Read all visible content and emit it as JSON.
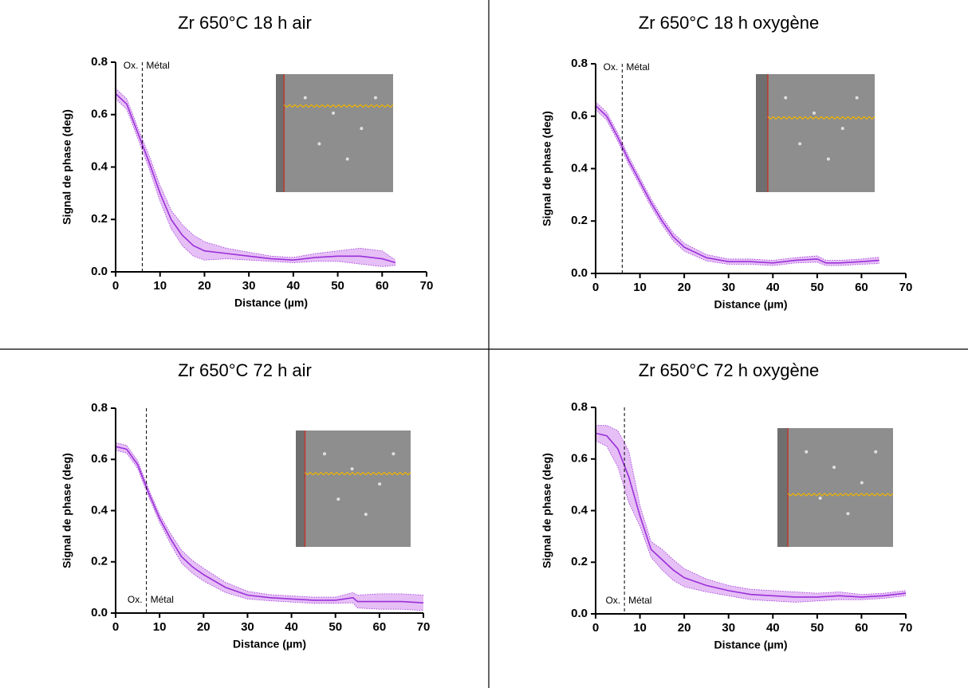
{
  "chart_data": [
    {
      "type": "line",
      "title": "Zr 650°C 18 h air",
      "xlabel": "Distance (µm)",
      "ylabel": "Signal de phase (deg)",
      "xlim": [
        0,
        70
      ],
      "xticks": [
        0,
        10,
        20,
        30,
        40,
        50,
        60,
        70
      ],
      "ylim": [
        0,
        0.8
      ],
      "yticks": [
        {
          "value": 0,
          "label": "0.0"
        },
        0.2,
        0.4,
        0.6,
        0.8
      ],
      "color": "#9b30d9",
      "band_color": "#dca4f2",
      "boundary": 6,
      "annotations": [
        "Ox.",
        "Métal"
      ],
      "annotation_position": "top",
      "x": [
        0,
        2.5,
        5,
        7.5,
        10,
        12.5,
        15,
        17.5,
        20,
        25,
        30,
        35,
        40,
        45,
        50,
        55,
        60,
        63
      ],
      "values": [
        0.68,
        0.64,
        0.53,
        0.42,
        0.3,
        0.2,
        0.14,
        0.1,
        0.08,
        0.07,
        0.06,
        0.05,
        0.045,
        0.055,
        0.06,
        0.06,
        0.05,
        0.035
      ],
      "errors": [
        0.02,
        0.02,
        0.02,
        0.025,
        0.03,
        0.035,
        0.04,
        0.04,
        0.035,
        0.02,
        0.015,
        0.01,
        0.01,
        0.015,
        0.02,
        0.03,
        0.03,
        0.01
      ]
    },
    {
      "type": "line",
      "title": "Zr 650°C 18 h oxygène",
      "xlabel": "Distance (µm)",
      "ylabel": "Signal de phase (deg)",
      "xlim": [
        0,
        70
      ],
      "xticks": [
        0,
        10,
        20,
        30,
        40,
        50,
        60,
        70
      ],
      "ylim": [
        0,
        0.8
      ],
      "yticks": [
        {
          "value": 0,
          "label": "0.0"
        },
        0.2,
        0.4,
        0.6,
        0.8
      ],
      "color": "#9b30d9",
      "band_color": "#dca4f2",
      "boundary": 6,
      "annotations": [
        "Ox.",
        "Métal"
      ],
      "annotation_position": "top",
      "x": [
        0,
        2.5,
        5,
        7.5,
        10,
        12.5,
        15,
        17.5,
        20,
        25,
        30,
        35,
        40,
        45,
        50,
        52,
        55,
        60,
        64
      ],
      "values": [
        0.64,
        0.6,
        0.52,
        0.43,
        0.35,
        0.27,
        0.2,
        0.14,
        0.1,
        0.06,
        0.045,
        0.045,
        0.04,
        0.05,
        0.055,
        0.04,
        0.04,
        0.045,
        0.05
      ],
      "errors": [
        0.015,
        0.015,
        0.015,
        0.015,
        0.015,
        0.015,
        0.015,
        0.015,
        0.015,
        0.012,
        0.01,
        0.01,
        0.01,
        0.01,
        0.012,
        0.01,
        0.01,
        0.01,
        0.012
      ]
    },
    {
      "type": "line",
      "title": "Zr 650°C 72 h air",
      "xlabel": "Distance (µm)",
      "ylabel": "Signal de phase (deg)",
      "xlim": [
        0,
        70
      ],
      "xticks": [
        0,
        10,
        20,
        30,
        40,
        50,
        60,
        70
      ],
      "ylim": [
        0,
        0.8
      ],
      "yticks": [
        {
          "value": 0,
          "label": "0.0"
        },
        0.2,
        0.4,
        0.6,
        0.8
      ],
      "color": "#9b30d9",
      "band_color": "#dca4f2",
      "boundary": 7,
      "annotations": [
        "Ox.",
        "Métal"
      ],
      "annotation_position": "bottom",
      "x": [
        0,
        2.5,
        5,
        7.5,
        10,
        12.5,
        15,
        17.5,
        20,
        25,
        30,
        35,
        40,
        45,
        50,
        54,
        55,
        60,
        65,
        70
      ],
      "values": [
        0.65,
        0.64,
        0.58,
        0.47,
        0.37,
        0.29,
        0.22,
        0.18,
        0.15,
        0.1,
        0.07,
        0.06,
        0.055,
        0.05,
        0.05,
        0.06,
        0.045,
        0.045,
        0.045,
        0.04
      ],
      "errors": [
        0.015,
        0.015,
        0.015,
        0.015,
        0.015,
        0.02,
        0.025,
        0.025,
        0.025,
        0.02,
        0.015,
        0.012,
        0.012,
        0.012,
        0.012,
        0.02,
        0.025,
        0.03,
        0.03,
        0.03
      ]
    },
    {
      "type": "line",
      "title": "Zr 650°C 72 h oxygène",
      "xlabel": "Distance (µm)",
      "ylabel": "Signal de phase (deg)",
      "xlim": [
        0,
        70
      ],
      "xticks": [
        0,
        10,
        20,
        30,
        40,
        50,
        60,
        70
      ],
      "ylim": [
        0,
        0.8
      ],
      "yticks": [
        {
          "value": 0,
          "label": "0.0"
        },
        0.2,
        0.4,
        0.6,
        0.8
      ],
      "color": "#9b30d9",
      "band_color": "#dca4f2",
      "boundary": 6.5,
      "annotations": [
        "Ox.",
        "Métal"
      ],
      "annotation_position": "bottom",
      "x": [
        0,
        2.5,
        5,
        7.5,
        10,
        12.5,
        15,
        17.5,
        20,
        25,
        30,
        35,
        40,
        45,
        50,
        55,
        60,
        65,
        70
      ],
      "values": [
        0.7,
        0.69,
        0.64,
        0.53,
        0.38,
        0.25,
        0.21,
        0.17,
        0.14,
        0.11,
        0.09,
        0.075,
        0.07,
        0.065,
        0.065,
        0.07,
        0.065,
        0.07,
        0.08
      ],
      "errors": [
        0.03,
        0.04,
        0.07,
        0.1,
        0.04,
        0.03,
        0.04,
        0.04,
        0.035,
        0.025,
        0.02,
        0.02,
        0.02,
        0.02,
        0.015,
        0.015,
        0.01,
        0.01,
        0.01
      ]
    }
  ]
}
